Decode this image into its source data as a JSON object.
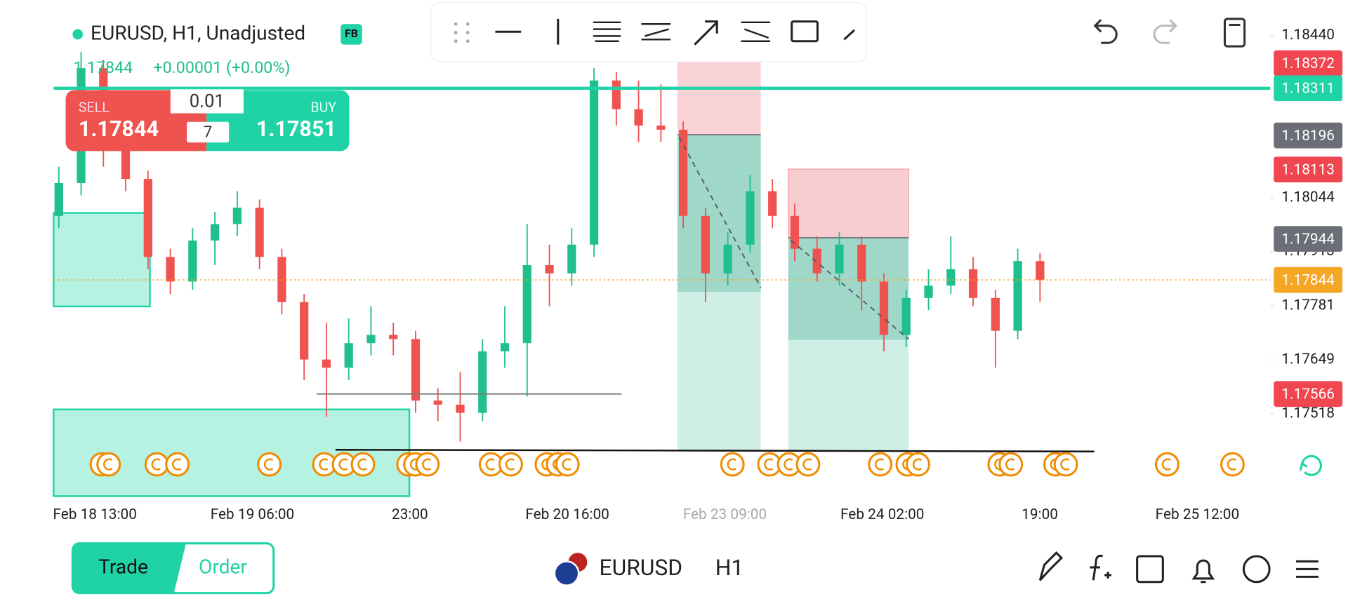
{
  "header": {
    "symbol_line": "EURUSD, H1, Unadjusted",
    "badge": "FB",
    "price": "1.17844",
    "change": "+0.00001 (+0.00%)"
  },
  "trade_panel": {
    "sell_label": "SELL",
    "sell_price": "1.17844",
    "lot": "0.01",
    "spread": "7",
    "buy_label": "BUY",
    "buy_price": "1.17851"
  },
  "chart_data": {
    "type": "candlestick",
    "ylim": [
      1.17313,
      1.18526
    ],
    "yticks": [
      {
        "value": 1.1844,
        "label": "1.18440"
      },
      {
        "value": 1.18044,
        "label": "1.18044"
      },
      {
        "value": 1.17913,
        "label": "1.17913"
      },
      {
        "value": 1.17781,
        "label": "1.17781"
      },
      {
        "value": 1.17649,
        "label": "1.17649"
      },
      {
        "value": 1.17518,
        "label": "1.17518"
      }
    ],
    "price_badges": [
      {
        "value": 1.18372,
        "label": "1.18372",
        "color": "#ef4650"
      },
      {
        "value": 1.18311,
        "label": "1.18311",
        "color": "#1fd3a6"
      },
      {
        "value": 1.18196,
        "label": "1.18196",
        "color": "#6b6e76"
      },
      {
        "value": 1.18113,
        "label": "1.18113",
        "color": "#ef4650"
      },
      {
        "value": 1.17944,
        "label": "1.17944",
        "color": "#6b6e76"
      },
      {
        "value": 1.17844,
        "label": "1.17844",
        "color": "#f5a623"
      },
      {
        "value": 1.17566,
        "label": "1.17566",
        "color": "#ef4650"
      }
    ],
    "x_labels": [
      "Feb 18 13:00",
      "Feb 19 06:00",
      "23:00",
      "Feb 20 16:00",
      "Feb 23 09:00",
      "Feb 24 02:00",
      "19:00",
      "Feb 25 12:00"
    ],
    "up_color": "#1fbf8f",
    "down_color": "#ef5350",
    "candles": [
      {
        "o": 1.18,
        "h": 1.1812,
        "l": 1.1797,
        "c": 1.1808
      },
      {
        "o": 1.1808,
        "h": 1.184,
        "l": 1.1805,
        "c": 1.1836
      },
      {
        "o": 1.1836,
        "h": 1.1838,
        "l": 1.1812,
        "c": 1.1816
      },
      {
        "o": 1.1816,
        "h": 1.1819,
        "l": 1.1806,
        "c": 1.1809
      },
      {
        "o": 1.1809,
        "h": 1.1811,
        "l": 1.1787,
        "c": 1.179
      },
      {
        "o": 1.179,
        "h": 1.1792,
        "l": 1.1781,
        "c": 1.1784
      },
      {
        "o": 1.1784,
        "h": 1.1797,
        "l": 1.1782,
        "c": 1.1794
      },
      {
        "o": 1.1794,
        "h": 1.1801,
        "l": 1.1788,
        "c": 1.1798
      },
      {
        "o": 1.1798,
        "h": 1.1806,
        "l": 1.1795,
        "c": 1.1802
      },
      {
        "o": 1.1802,
        "h": 1.1804,
        "l": 1.1787,
        "c": 1.179
      },
      {
        "o": 1.179,
        "h": 1.1792,
        "l": 1.1776,
        "c": 1.1779
      },
      {
        "o": 1.1779,
        "h": 1.1781,
        "l": 1.176,
        "c": 1.1765
      },
      {
        "o": 1.1765,
        "h": 1.1774,
        "l": 1.1751,
        "c": 1.1763
      },
      {
        "o": 1.1763,
        "h": 1.1775,
        "l": 1.176,
        "c": 1.1769
      },
      {
        "o": 1.1769,
        "h": 1.1778,
        "l": 1.1766,
        "c": 1.1771
      },
      {
        "o": 1.1771,
        "h": 1.1774,
        "l": 1.1766,
        "c": 1.177
      },
      {
        "o": 1.177,
        "h": 1.1772,
        "l": 1.1752,
        "c": 1.1755
      },
      {
        "o": 1.1755,
        "h": 1.1758,
        "l": 1.175,
        "c": 1.1754
      },
      {
        "o": 1.1754,
        "h": 1.1762,
        "l": 1.1745,
        "c": 1.1752
      },
      {
        "o": 1.1752,
        "h": 1.177,
        "l": 1.175,
        "c": 1.1767
      },
      {
        "o": 1.1767,
        "h": 1.1778,
        "l": 1.1763,
        "c": 1.1769
      },
      {
        "o": 1.1769,
        "h": 1.1798,
        "l": 1.1756,
        "c": 1.1788
      },
      {
        "o": 1.1788,
        "h": 1.1793,
        "l": 1.1778,
        "c": 1.1786
      },
      {
        "o": 1.1786,
        "h": 1.1797,
        "l": 1.1783,
        "c": 1.1793
      },
      {
        "o": 1.1793,
        "h": 1.1836,
        "l": 1.179,
        "c": 1.1833
      },
      {
        "o": 1.1833,
        "h": 1.1835,
        "l": 1.1822,
        "c": 1.1826
      },
      {
        "o": 1.1826,
        "h": 1.1833,
        "l": 1.1818,
        "c": 1.1822
      },
      {
        "o": 1.1822,
        "h": 1.1832,
        "l": 1.1818,
        "c": 1.1821
      },
      {
        "o": 1.1821,
        "h": 1.1823,
        "l": 1.1797,
        "c": 1.18
      },
      {
        "o": 1.18,
        "h": 1.1802,
        "l": 1.1779,
        "c": 1.1786
      },
      {
        "o": 1.1786,
        "h": 1.1796,
        "l": 1.1783,
        "c": 1.1793
      },
      {
        "o": 1.1793,
        "h": 1.181,
        "l": 1.1791,
        "c": 1.1806
      },
      {
        "o": 1.1806,
        "h": 1.1809,
        "l": 1.1797,
        "c": 1.18
      },
      {
        "o": 1.18,
        "h": 1.1803,
        "l": 1.1789,
        "c": 1.1792
      },
      {
        "o": 1.1792,
        "h": 1.1795,
        "l": 1.1784,
        "c": 1.1786
      },
      {
        "o": 1.1786,
        "h": 1.1796,
        "l": 1.1783,
        "c": 1.1793
      },
      {
        "o": 1.1793,
        "h": 1.1795,
        "l": 1.1777,
        "c": 1.1784
      },
      {
        "o": 1.1784,
        "h": 1.1786,
        "l": 1.1767,
        "c": 1.1771
      },
      {
        "o": 1.1771,
        "h": 1.1782,
        "l": 1.1768,
        "c": 1.178
      },
      {
        "o": 1.178,
        "h": 1.1787,
        "l": 1.1777,
        "c": 1.1783
      },
      {
        "o": 1.1783,
        "h": 1.1795,
        "l": 1.1781,
        "c": 1.1787
      },
      {
        "o": 1.1787,
        "h": 1.179,
        "l": 1.1778,
        "c": 1.178
      },
      {
        "o": 1.178,
        "h": 1.1782,
        "l": 1.1763,
        "c": 1.1772
      },
      {
        "o": 1.1772,
        "h": 1.1792,
        "l": 1.177,
        "c": 1.1789
      },
      {
        "o": 1.1789,
        "h": 1.1791,
        "l": 1.1779,
        "c": 1.17844
      }
    ]
  },
  "bottom_bar": {
    "trade": "Trade",
    "order": "Order",
    "symbol": "EURUSD",
    "timeframe": "H1"
  }
}
